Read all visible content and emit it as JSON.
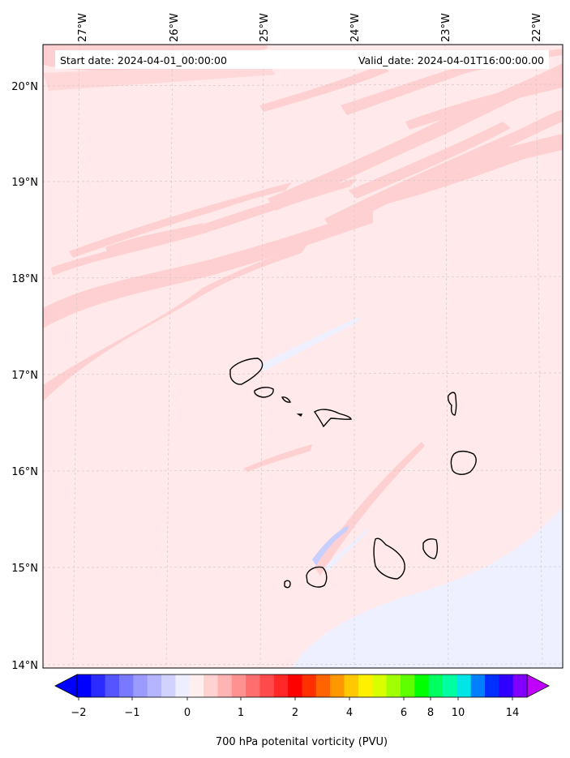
{
  "map": {
    "start_date_text": "Start date: 2024-04-01_00:00:00",
    "valid_date_text": "Valid_date: 2024-04-01T16:00:00.00",
    "lon_labels": [
      "27°W",
      "26°W",
      "25°W",
      "24°W",
      "23°W",
      "22°W"
    ],
    "lat_labels": [
      "20°N",
      "19°N",
      "18°N",
      "17°N",
      "16°N",
      "15°N",
      "14°N"
    ],
    "background_color": "#ffe9ea",
    "positive_band_color": "#ffd0d1",
    "negative_band_color": "#eef0ff",
    "coastline_color": "#000000",
    "gridline_style": "dashed light gray"
  },
  "colorbar": {
    "label": "700 hPa potenital vorticity (PVU)",
    "tick_labels": [
      "−2",
      "−1",
      "0",
      "1",
      "2",
      "4",
      "6",
      "8",
      "10",
      "14"
    ],
    "colors": [
      "#0000ff",
      "#2b2bff",
      "#5555ff",
      "#7979ff",
      "#9b9bff",
      "#b4b4ff",
      "#d2d2ff",
      "#eeeeff",
      "#ffeeee",
      "#ffd2d2",
      "#ffb4b4",
      "#ff9191",
      "#ff6e6e",
      "#ff4b4b",
      "#ff2727",
      "#ff0000",
      "#ff3000",
      "#ff6400",
      "#ff9800",
      "#ffc800",
      "#fff000",
      "#d8ff00",
      "#a0ff00",
      "#60ff00",
      "#00ff00",
      "#00ff60",
      "#00ffa0",
      "#00e6e6",
      "#0080ff",
      "#0030ff",
      "#3000ff",
      "#8000ff"
    ],
    "under_color": "#0000ff",
    "over_color": "#c000ff"
  }
}
